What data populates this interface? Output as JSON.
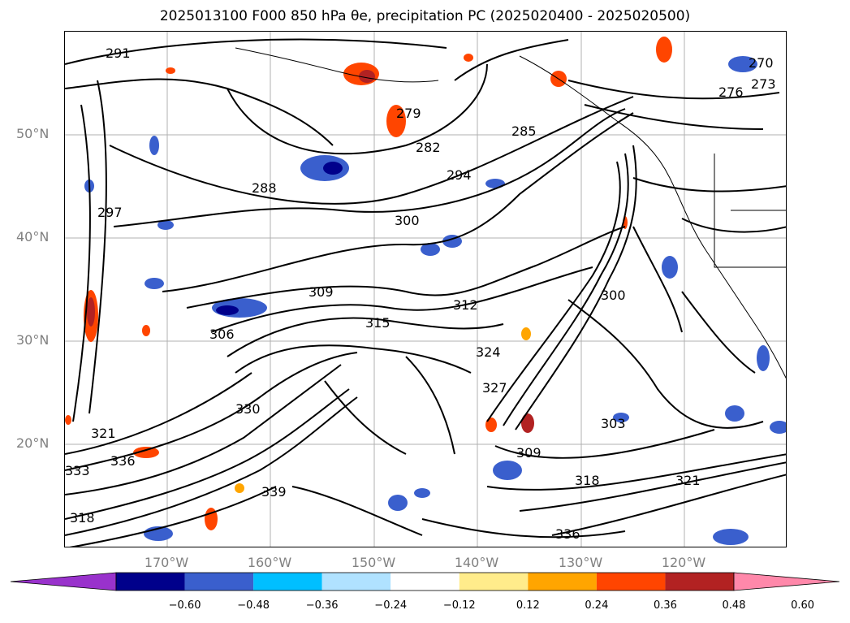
{
  "title": "2025013100 F000 850 hPa θe, precipitation PC (2025020400 - 2025020500)",
  "map": {
    "lat_labels": [
      "50°N",
      "40°N",
      "30°N",
      "20°N"
    ],
    "lon_labels": [
      "170°W",
      "160°W",
      "150°W",
      "140°W",
      "130°W",
      "120°W"
    ]
  },
  "contour_labels": [
    "291",
    "279",
    "282",
    "288",
    "285",
    "294",
    "297",
    "300",
    "312",
    "315",
    "309",
    "306",
    "321",
    "324",
    "327",
    "330",
    "333",
    "336",
    "339",
    "318",
    "303",
    "270",
    "273",
    "276",
    "300",
    "318",
    "321",
    "336",
    "309"
  ],
  "colorbar": {
    "ticks": [
      "−0.60",
      "−0.48",
      "−0.36",
      "−0.24",
      "−0.12",
      "0.12",
      "0.24",
      "0.36",
      "0.48",
      "0.60"
    ],
    "colors": [
      "#9932CC",
      "#00008B",
      "#3A5FCD",
      "#00BFFF",
      "#B0E2FF",
      "#FFFFFF",
      "#FFEC8B",
      "#FFA500",
      "#FF4500",
      "#B22222",
      "#FF88AA"
    ],
    "under_color": "#9932CC",
    "over_color": "#FF88AA"
  },
  "colors": {
    "grid": "#b0b0b0",
    "contour": "#000000",
    "tick_label": "#808080"
  }
}
